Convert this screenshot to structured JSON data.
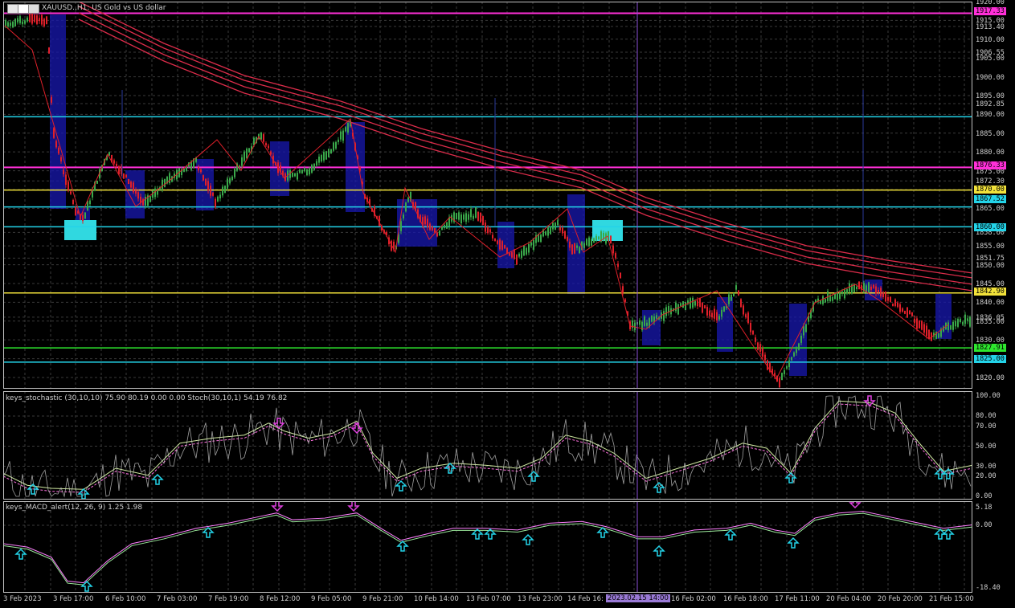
{
  "window": {
    "symbol_title": "XAUUSD.,H1:  US Gold vs US dollar"
  },
  "colors": {
    "background": "#000000",
    "grid": "#3a3a3a",
    "bull_candle": "#3aa84a",
    "bear_candle": "#e0202a",
    "ma_lines": "#dc2c4a",
    "magenta_level": "#ff2fd8",
    "cyan_level": "#23d3e8",
    "yellow_level": "#f2e23a",
    "green_level": "#2ee82e",
    "zigzag": "#e0202a",
    "blue_zone": "#1818b0",
    "cyan_zone": "#30d8e0",
    "crosshair": "#8b4fd8",
    "stoch_main": "#cfe8a0",
    "stoch_signal": "#ff70e0",
    "stoch_raw": "#c8c8c8",
    "macd_main": "#9ae89a",
    "macd_signal": "#ff80ff",
    "arrow_up": "#23d3e8",
    "arrow_down": "#e040e0"
  },
  "price_axis": {
    "ticks": [
      "1920.00",
      "1915.00",
      "1913.40",
      "1910.00",
      "1906.55",
      "1905.00",
      "1900.00",
      "1895.00",
      "1892.85",
      "1890.00",
      "1885.00",
      "1880.00",
      "1875.00",
      "1872.30",
      "1870.00",
      "1865.00",
      "1858.60",
      "1855.00",
      "1851.75",
      "1850.00",
      "1845.00",
      "1840.00",
      "1836.05",
      "1835.00",
      "1830.00",
      "1825.00",
      "1820.00"
    ],
    "range": [
      1817,
      1920
    ],
    "level_labels": [
      {
        "value": "1917.33",
        "type": "magenta"
      },
      {
        "value": "1876.33",
        "type": "magenta"
      },
      {
        "value": "1870.00",
        "type": "yellow"
      },
      {
        "value": "1867.52",
        "type": "cyan"
      },
      {
        "value": "1860.00",
        "type": "cyan"
      },
      {
        "value": "1842.90",
        "type": "yellow"
      },
      {
        "value": "1827.91",
        "type": "green"
      },
      {
        "value": "1825.00",
        "type": "cyan"
      }
    ]
  },
  "levels": [
    {
      "price": 1917.33,
      "type": "magenta"
    },
    {
      "price": 1889.8,
      "type": "cyan"
    },
    {
      "price": 1876.33,
      "type": "magenta"
    },
    {
      "price": 1870.3,
      "type": "yellow"
    },
    {
      "price": 1865.8,
      "type": "cyan"
    },
    {
      "price": 1860.5,
      "type": "cyan"
    },
    {
      "price": 1842.9,
      "type": "yellow"
    },
    {
      "price": 1828.3,
      "type": "green"
    },
    {
      "price": 1824.5,
      "type": "cyan"
    }
  ],
  "stochastic": {
    "title": "keys_stochastic (30,10,10) 75.90 80.19 0.00 0.00 Stoch(30,10,1) 54.19 76.82",
    "ticks": [
      "100.00",
      "80.00",
      "70.00",
      "50.00",
      "30.00",
      "20.00",
      "0.00"
    ]
  },
  "macd": {
    "title": "keys_MACD_alert(12, 26, 9) 1.25 1.98",
    "ticks": [
      "5.18",
      "0.00",
      "-18.40"
    ]
  },
  "time_axis": {
    "labels": [
      "3 Feb 2023",
      "3 Feb 17:00",
      "6 Feb 10:00",
      "7 Feb 03:00",
      "7 Feb 19:00",
      "8 Feb 12:00",
      "9 Feb 05:00",
      "9 Feb 21:00",
      "10 Feb 14:00",
      "13 Feb 07:00",
      "13 Feb 23:00",
      "14 Feb 16:",
      "16 Feb 02:00",
      "16 Feb 18:00",
      "17 Feb 11:00",
      "20 Feb 04:00",
      "20 Feb 20:00",
      "21 Feb 15:00"
    ],
    "crosshair_label": "2023.02.15 14:00"
  }
}
